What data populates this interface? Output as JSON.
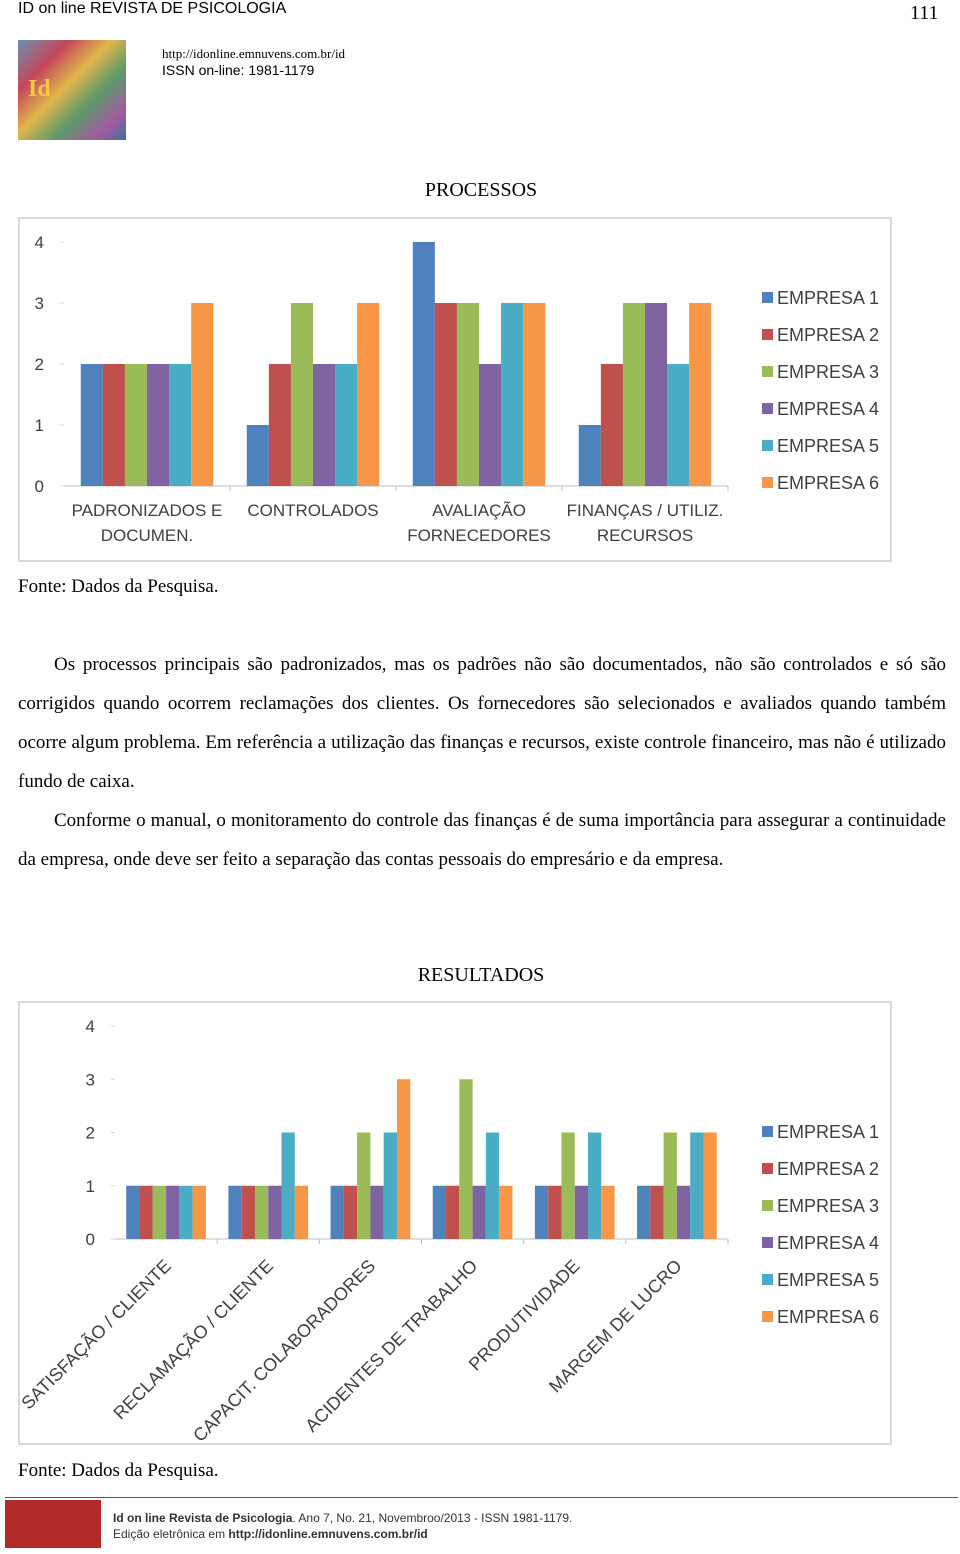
{
  "header": {
    "journal": "ID on line REVISTA DE PSICOLOGIA",
    "page": "111",
    "url": "http://idonline.emnuvens.com.br/id",
    "issn": "ISSN on-line: 1981-1179"
  },
  "chart_data": [
    {
      "type": "bar",
      "title": "PROCESSOS",
      "categories": [
        "PADRONIZADOS E DOCUMEN.",
        "CONTROLADOS",
        "AVALIAÇÃO FORNECEDORES",
        "FINANÇAS / UTILIZ. RECURSOS"
      ],
      "series": [
        {
          "name": "EMPRESA 1",
          "color": "#4f81bd",
          "values": [
            2,
            1,
            4,
            1
          ]
        },
        {
          "name": "EMPRESA 2",
          "color": "#c0504d",
          "values": [
            2,
            2,
            3,
            2
          ]
        },
        {
          "name": "EMPRESA 3",
          "color": "#9bbb59",
          "values": [
            2,
            3,
            3,
            3
          ]
        },
        {
          "name": "EMPRESA 4",
          "color": "#8064a2",
          "values": [
            2,
            2,
            2,
            3
          ]
        },
        {
          "name": "EMPRESA 5",
          "color": "#4bacc6",
          "values": [
            2,
            2,
            3,
            2
          ]
        },
        {
          "name": "EMPRESA 6",
          "color": "#f79646",
          "values": [
            3,
            3,
            3,
            3
          ]
        }
      ],
      "ylim": [
        0,
        4
      ],
      "yticks": [
        0,
        1,
        2,
        3,
        4
      ],
      "legend": "right",
      "source": "Fonte: Dados da Pesquisa."
    },
    {
      "type": "bar",
      "title": "RESULTADOS",
      "categories": [
        "SATISFAÇÃO / CLIENTE",
        "RECLAMAÇÃO / CLIENTE",
        "CAPACIT. COLABORADORES",
        "ACIDENTES DE TRABALHO",
        "PRODUTIVIDADE",
        "MARGEM DE LUCRO"
      ],
      "series": [
        {
          "name": "EMPRESA 1",
          "color": "#4f81bd",
          "values": [
            1,
            1,
            1,
            1,
            1,
            1
          ]
        },
        {
          "name": "EMPRESA 2",
          "color": "#c0504d",
          "values": [
            1,
            1,
            1,
            1,
            1,
            1
          ]
        },
        {
          "name": "EMPRESA 3",
          "color": "#9bbb59",
          "values": [
            1,
            1,
            2,
            3,
            2,
            2
          ]
        },
        {
          "name": "EMPRESA 4",
          "color": "#8064a2",
          "values": [
            1,
            1,
            1,
            1,
            1,
            1
          ]
        },
        {
          "name": "EMPRESA 5",
          "color": "#4bacc6",
          "values": [
            1,
            2,
            2,
            2,
            2,
            2
          ]
        },
        {
          "name": "EMPRESA 6",
          "color": "#f79646",
          "values": [
            1,
            1,
            3,
            1,
            1,
            2
          ]
        }
      ],
      "ylim": [
        0,
        4
      ],
      "yticks": [
        0,
        1,
        2,
        3,
        4
      ],
      "legend": "right",
      "source": "Fonte: Dados da Pesquisa."
    }
  ],
  "paragraphs": [
    "Os processos principais são padronizados, mas os padrões não são documentados, não são controlados e só são corrigidos quando ocorrem reclamações dos clientes. Os fornecedores são selecionados e avaliados quando também ocorre algum problema. Em referência a utilização das finanças e recursos, existe controle financeiro, mas não é utilizado fundo de caixa.",
    "Conforme o manual, o monitoramento do controle das finanças é de suma importância para assegurar a continuidade da empresa, onde deve ser feito a separação das contas pessoais do empresário e da empresa."
  ],
  "footer": {
    "journal": "Id on line Revista de Psicologia",
    "issue": ". Ano 7, No. 21, Novembroo/2013 - ISSN 1981-1179.",
    "edition": "Edição eletrônica em",
    "url": "http://idonline.emnuvens.com.br/id"
  }
}
